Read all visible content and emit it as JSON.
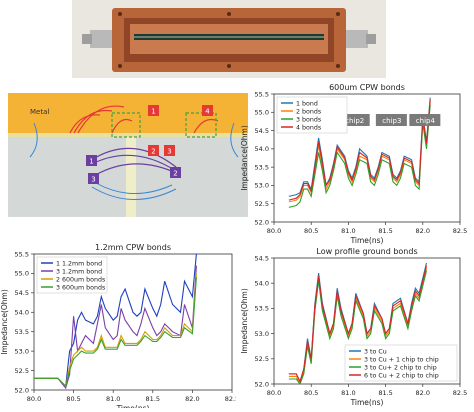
{
  "diagram": {
    "metal_label": "Metal",
    "markers": [
      {
        "label": "1",
        "color": "#e53935"
      },
      {
        "label": "4",
        "color": "#e53935"
      },
      {
        "label": "2",
        "color": "#e53935"
      },
      {
        "label": "3",
        "color": "#e53935"
      },
      {
        "label": "1",
        "color": "#6a3fa0"
      },
      {
        "label": "2",
        "color": "#6a3fa0"
      },
      {
        "label": "3",
        "color": "#6a3fa0"
      }
    ]
  },
  "chart_data": [
    {
      "type": "line",
      "title": "600um CPW bonds",
      "xlabel": "Time(ns)",
      "ylabel": "Impedance(Ohm)",
      "xlim": [
        80.0,
        82.5
      ],
      "ylim": [
        52.0,
        55.5
      ],
      "xticks": [
        "80.0",
        "80.5",
        "81.0",
        "81.5",
        "82.0",
        "82.5"
      ],
      "yticks": [
        "52.0",
        "52.5",
        "53.0",
        "53.5",
        "54.0",
        "54.5",
        "55.0",
        "55.5"
      ],
      "legend": "top-left",
      "chip_labels": [
        "chip1",
        "chip2",
        "chip3",
        "chip4"
      ],
      "series": [
        {
          "name": "1 bond",
          "color": "#1f77b4",
          "x": [
            80.2,
            80.3,
            80.35,
            80.4,
            80.45,
            80.5,
            80.55,
            80.6,
            80.65,
            80.7,
            80.75,
            80.8,
            80.85,
            80.95,
            81.0,
            81.05,
            81.1,
            81.15,
            81.25,
            81.3,
            81.35,
            81.4,
            81.45,
            81.55,
            81.6,
            81.65,
            81.7,
            81.75,
            81.85,
            81.9,
            81.95,
            82.0,
            82.05,
            82.1
          ],
          "y": [
            52.7,
            52.75,
            52.8,
            53.1,
            53.1,
            52.9,
            53.6,
            54.3,
            53.7,
            53.0,
            53.2,
            53.6,
            54.1,
            53.8,
            53.4,
            53.2,
            53.5,
            54.0,
            53.8,
            53.3,
            53.2,
            53.5,
            53.9,
            53.8,
            53.3,
            53.2,
            53.4,
            53.8,
            53.7,
            53.2,
            53.1,
            54.9,
            54.2,
            55.4
          ]
        },
        {
          "name": "2 bonds",
          "color": "#ff7f0e",
          "x": [
            80.2,
            80.3,
            80.35,
            80.4,
            80.45,
            80.5,
            80.55,
            80.6,
            80.65,
            80.7,
            80.75,
            80.8,
            80.85,
            80.95,
            81.0,
            81.05,
            81.1,
            81.15,
            81.25,
            81.3,
            81.35,
            81.4,
            81.45,
            81.55,
            81.6,
            81.65,
            81.7,
            81.75,
            81.85,
            81.9,
            81.95,
            82.0,
            82.05,
            82.1
          ],
          "y": [
            52.55,
            52.6,
            52.7,
            53.0,
            53.0,
            52.8,
            53.4,
            54.1,
            53.5,
            52.9,
            53.1,
            53.5,
            54.0,
            53.7,
            53.3,
            53.1,
            53.4,
            53.8,
            53.7,
            53.2,
            53.1,
            53.4,
            53.8,
            53.7,
            53.2,
            53.1,
            53.3,
            53.7,
            53.6,
            53.1,
            53.0,
            54.8,
            54.1,
            55.3
          ]
        },
        {
          "name": "3 bonds",
          "color": "#2ca02c",
          "x": [
            80.2,
            80.3,
            80.35,
            80.4,
            80.45,
            80.5,
            80.55,
            80.6,
            80.65,
            80.7,
            80.75,
            80.8,
            80.85,
            80.95,
            81.0,
            81.05,
            81.1,
            81.15,
            81.25,
            81.3,
            81.35,
            81.4,
            81.45,
            81.55,
            81.6,
            81.65,
            81.7,
            81.75,
            81.85,
            81.9,
            81.95,
            82.0,
            82.05,
            82.1
          ],
          "y": [
            52.4,
            52.45,
            52.55,
            52.9,
            52.9,
            52.7,
            53.3,
            53.9,
            53.4,
            52.8,
            53.0,
            53.4,
            53.9,
            53.6,
            53.2,
            53.0,
            53.3,
            53.7,
            53.6,
            53.1,
            53.0,
            53.3,
            53.7,
            53.6,
            53.1,
            53.0,
            53.2,
            53.6,
            53.5,
            53.0,
            52.9,
            54.7,
            54.0,
            55.2
          ]
        },
        {
          "name": "4 bonds",
          "color": "#d62728",
          "x": [
            80.2,
            80.3,
            80.35,
            80.4,
            80.45,
            80.5,
            80.55,
            80.6,
            80.65,
            80.7,
            80.75,
            80.8,
            80.85,
            80.95,
            81.0,
            81.05,
            81.1,
            81.15,
            81.25,
            81.3,
            81.35,
            81.4,
            81.45,
            81.55,
            81.6,
            81.65,
            81.7,
            81.75,
            81.85,
            81.9,
            81.95,
            82.0,
            82.05,
            82.1
          ],
          "y": [
            52.6,
            52.65,
            52.75,
            53.05,
            53.05,
            52.85,
            53.5,
            54.2,
            53.6,
            53.0,
            53.15,
            53.55,
            54.05,
            53.75,
            53.35,
            53.15,
            53.45,
            53.9,
            53.75,
            53.25,
            53.15,
            53.45,
            53.85,
            53.75,
            53.25,
            53.15,
            53.35,
            53.75,
            53.65,
            53.15,
            53.05,
            54.85,
            54.15,
            55.35
          ]
        }
      ]
    },
    {
      "type": "line",
      "title": "1.2mm CPW bonds",
      "xlabel": "Time(ns)",
      "ylabel": "Impedance(Ohm)",
      "xlim": [
        80.0,
        82.5
      ],
      "ylim": [
        52.0,
        55.5
      ],
      "xticks": [
        "80.0",
        "80.5",
        "81.0",
        "81.5",
        "82.0",
        "82.5"
      ],
      "yticks": [
        "52.0",
        "52.5",
        "53.0",
        "53.5",
        "54.0",
        "54.5",
        "55.0",
        "55.5"
      ],
      "legend": "top-left",
      "series": [
        {
          "name": "1 1.2mm bond",
          "color": "#1f3fbf",
          "x": [
            80.0,
            80.3,
            80.4,
            80.45,
            80.5,
            80.55,
            80.6,
            80.65,
            80.75,
            80.8,
            80.85,
            80.9,
            81.0,
            81.05,
            81.1,
            81.15,
            81.25,
            81.3,
            81.35,
            81.4,
            81.5,
            81.55,
            81.6,
            81.65,
            81.75,
            81.85,
            81.9,
            82.0,
            82.05
          ],
          "y": [
            52.3,
            52.3,
            52.1,
            53.0,
            53.2,
            53.8,
            54.0,
            53.8,
            53.7,
            53.9,
            54.4,
            54.1,
            53.8,
            53.9,
            54.4,
            54.6,
            54.0,
            53.9,
            54.0,
            54.6,
            54.1,
            53.9,
            54.2,
            54.8,
            54.2,
            54.0,
            54.8,
            54.4,
            55.5
          ]
        },
        {
          "name": "3 1.2mm bond",
          "color": "#7b3fa8",
          "x": [
            80.0,
            80.3,
            80.4,
            80.45,
            80.5,
            80.55,
            80.6,
            80.65,
            80.75,
            80.8,
            80.85,
            80.9,
            81.0,
            81.05,
            81.1,
            81.15,
            81.25,
            81.3,
            81.35,
            81.4,
            81.5,
            81.55,
            81.6,
            81.65,
            81.75,
            81.85,
            81.9,
            82.0,
            82.05
          ],
          "y": [
            52.3,
            52.3,
            52.05,
            52.4,
            53.9,
            53.0,
            53.2,
            53.4,
            53.2,
            53.7,
            54.2,
            53.6,
            53.3,
            53.4,
            54.1,
            53.8,
            53.5,
            53.4,
            53.7,
            54.1,
            53.6,
            53.4,
            53.5,
            53.7,
            53.5,
            53.4,
            54.2,
            53.6,
            55.2
          ]
        },
        {
          "name": "2 600um bonds",
          "color": "#d4a000",
          "x": [
            80.0,
            80.3,
            80.4,
            80.45,
            80.5,
            80.55,
            80.6,
            80.65,
            80.75,
            80.8,
            80.85,
            80.9,
            81.0,
            81.05,
            81.1,
            81.15,
            81.25,
            81.3,
            81.35,
            81.4,
            81.5,
            81.55,
            81.6,
            81.65,
            81.75,
            81.85,
            81.9,
            82.0,
            82.05
          ],
          "y": [
            52.3,
            52.3,
            52.1,
            52.6,
            52.9,
            53.0,
            53.1,
            53.0,
            53.0,
            53.1,
            53.4,
            53.1,
            53.1,
            53.1,
            53.4,
            53.2,
            53.2,
            53.2,
            53.3,
            53.5,
            53.3,
            53.3,
            53.4,
            53.6,
            53.4,
            53.4,
            53.7,
            53.5,
            55.0
          ]
        },
        {
          "name": "3 600um bonds",
          "color": "#3aa02c",
          "x": [
            80.0,
            80.3,
            80.4,
            80.45,
            80.5,
            80.55,
            80.6,
            80.65,
            80.75,
            80.8,
            80.85,
            80.9,
            81.0,
            81.05,
            81.1,
            81.15,
            81.25,
            81.3,
            81.35,
            81.4,
            81.5,
            81.55,
            81.6,
            81.65,
            81.75,
            81.85,
            81.9,
            82.0,
            82.05
          ],
          "y": [
            52.3,
            52.3,
            52.1,
            52.5,
            52.8,
            52.9,
            53.0,
            52.95,
            52.95,
            53.05,
            53.3,
            53.05,
            53.05,
            53.05,
            53.3,
            53.15,
            53.15,
            53.15,
            53.25,
            53.4,
            53.25,
            53.25,
            53.35,
            53.5,
            53.35,
            53.35,
            53.6,
            53.45,
            54.9
          ]
        }
      ]
    },
    {
      "type": "line",
      "title": "Low profile ground bonds",
      "xlabel": "Time(ns)",
      "ylabel": "Impedance(Ohm)",
      "xlim": [
        80.0,
        82.5
      ],
      "ylim": [
        52.0,
        54.5
      ],
      "xticks": [
        "80.0",
        "80.5",
        "81.0",
        "81.5",
        "82.0",
        "82.5"
      ],
      "yticks": [
        "52.0",
        "52.5",
        "53.0",
        "53.5",
        "54.0",
        "54.5"
      ],
      "legend": "bottom-right",
      "series": [
        {
          "name": "3 to Cu",
          "color": "#1f77b4",
          "x": [
            80.2,
            80.3,
            80.35,
            80.4,
            80.45,
            80.5,
            80.55,
            80.6,
            80.65,
            80.75,
            80.8,
            80.85,
            80.9,
            81.0,
            81.05,
            81.1,
            81.2,
            81.25,
            81.3,
            81.35,
            81.45,
            81.5,
            81.55,
            81.6,
            81.7,
            81.8,
            81.85,
            81.9,
            81.95,
            82.05
          ],
          "y": [
            52.2,
            52.2,
            52.05,
            52.3,
            52.9,
            52.5,
            53.6,
            54.2,
            53.6,
            53.0,
            53.2,
            53.9,
            53.5,
            53.0,
            53.2,
            53.8,
            53.4,
            53.0,
            53.1,
            53.6,
            53.3,
            53.0,
            53.1,
            53.6,
            53.7,
            53.2,
            53.6,
            53.9,
            53.8,
            54.4
          ]
        },
        {
          "name": "3 to Cu + 1 chip to chip",
          "color": "#ff7f0e",
          "x": [
            80.2,
            80.3,
            80.35,
            80.4,
            80.45,
            80.5,
            80.55,
            80.6,
            80.65,
            80.75,
            80.8,
            80.85,
            80.9,
            81.0,
            81.05,
            81.1,
            81.2,
            81.25,
            81.3,
            81.35,
            81.45,
            81.5,
            81.55,
            81.6,
            81.7,
            81.8,
            81.85,
            81.9,
            81.95,
            82.05
          ],
          "y": [
            52.15,
            52.15,
            52.0,
            52.25,
            52.8,
            52.45,
            53.5,
            54.1,
            53.5,
            52.95,
            53.15,
            53.8,
            53.4,
            52.95,
            53.15,
            53.7,
            53.35,
            52.95,
            53.05,
            53.5,
            53.25,
            52.95,
            53.05,
            53.5,
            53.6,
            53.15,
            53.5,
            53.8,
            53.7,
            54.3
          ]
        },
        {
          "name": "3 to Cu+ 2 chip to chip",
          "color": "#2ca02c",
          "x": [
            80.2,
            80.3,
            80.35,
            80.4,
            80.45,
            80.5,
            80.55,
            80.6,
            80.65,
            80.75,
            80.8,
            80.85,
            80.9,
            81.0,
            81.05,
            81.1,
            81.2,
            81.25,
            81.3,
            81.35,
            81.45,
            81.5,
            81.55,
            81.6,
            81.7,
            81.8,
            81.85,
            81.9,
            81.95,
            82.05
          ],
          "y": [
            52.1,
            52.1,
            52.0,
            52.2,
            52.75,
            52.4,
            53.45,
            54.05,
            53.45,
            52.9,
            53.1,
            53.75,
            53.35,
            52.9,
            53.1,
            53.65,
            53.3,
            52.9,
            53.0,
            53.45,
            53.2,
            52.9,
            53.0,
            53.45,
            53.55,
            53.1,
            53.45,
            53.75,
            53.65,
            54.25
          ]
        },
        {
          "name": "6 to Cu + 2 chip to chip",
          "color": "#d62728",
          "x": [
            80.2,
            80.3,
            80.35,
            80.4,
            80.45,
            80.5,
            80.55,
            80.6,
            80.65,
            80.75,
            80.8,
            80.85,
            80.9,
            81.0,
            81.05,
            81.1,
            81.2,
            81.25,
            81.3,
            81.35,
            81.45,
            81.5,
            81.55,
            81.6,
            81.7,
            81.8,
            81.85,
            81.9,
            81.95,
            82.05
          ],
          "y": [
            52.2,
            52.2,
            52.05,
            52.3,
            52.85,
            52.5,
            53.55,
            54.15,
            53.55,
            53.0,
            53.2,
            53.85,
            53.45,
            53.0,
            53.2,
            53.75,
            53.4,
            53.0,
            53.1,
            53.55,
            53.3,
            53.0,
            53.1,
            53.55,
            53.65,
            53.2,
            53.55,
            53.85,
            53.75,
            54.35
          ]
        }
      ]
    }
  ]
}
